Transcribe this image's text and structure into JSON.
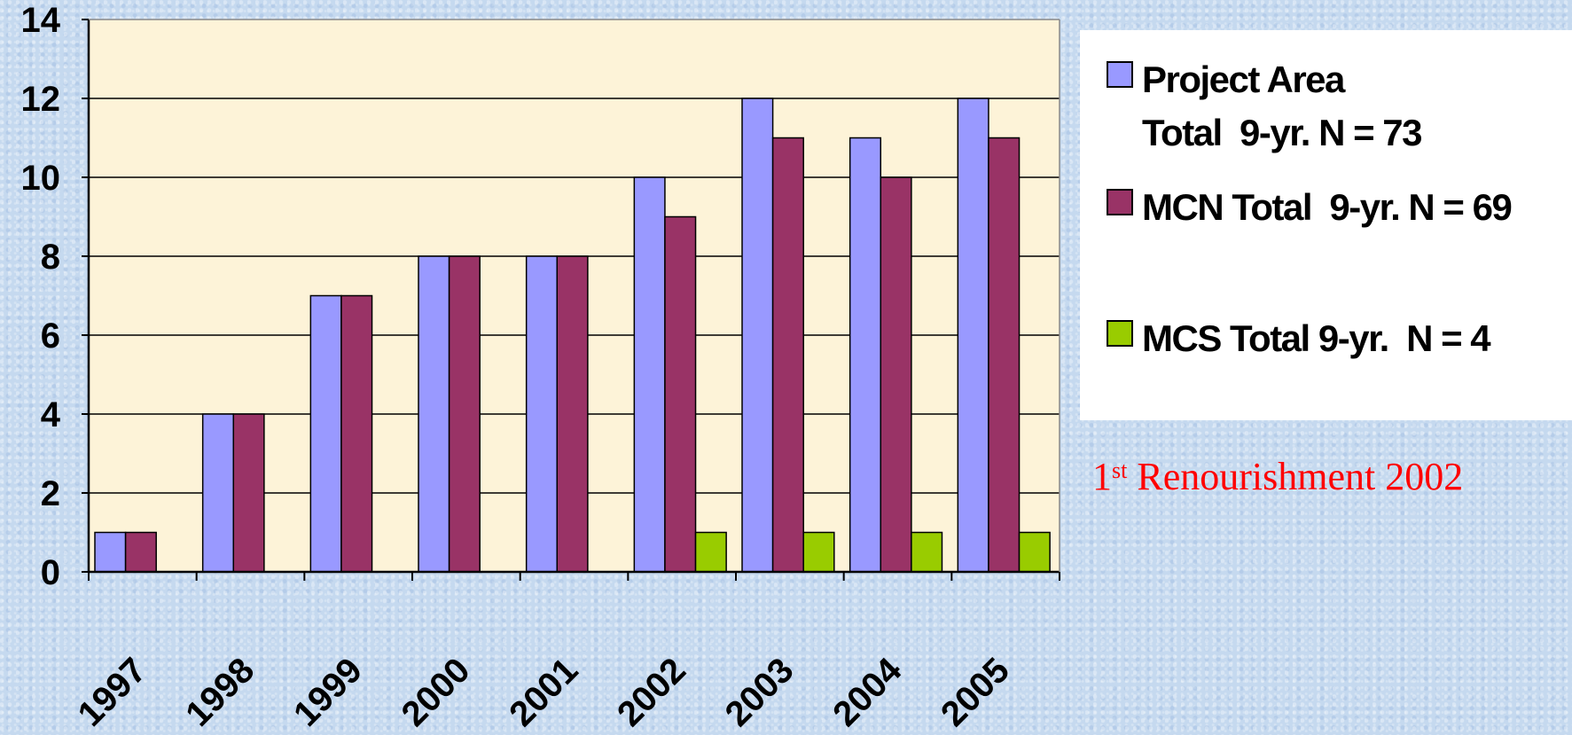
{
  "chart_data": {
    "type": "bar",
    "title": "",
    "xlabel": "",
    "ylabel": "",
    "ylim": [
      0,
      14
    ],
    "yticks": [
      "0",
      "2",
      "4",
      "6",
      "8",
      "10",
      "12",
      "14"
    ],
    "categories": [
      "1997",
      "1998",
      "1999",
      "2000",
      "2001",
      "2002",
      "2003",
      "2004",
      "2005"
    ],
    "series": [
      {
        "name": "Project Area Total  9-yr. N = 73",
        "color": "#9999ff",
        "values": [
          1,
          4,
          7,
          8,
          8,
          10,
          12,
          11,
          12
        ]
      },
      {
        "name": "MCN Total  9-yr. N = 69",
        "color": "#993366",
        "values": [
          1,
          4,
          7,
          8,
          8,
          9,
          11,
          10,
          11
        ]
      },
      {
        "name": "MCS Total 9-yr.  N = 4",
        "color": "#99cc00",
        "values": [
          0,
          0,
          0,
          0,
          0,
          1,
          1,
          1,
          1
        ]
      }
    ],
    "grid": true,
    "plot_background": "#fdf3d8",
    "legend_position": "right"
  },
  "legend": {
    "items": [
      {
        "line1": "Project Area",
        "line2": "Total  9-yr. N = 73"
      },
      {
        "line1": "MCN Total  9-yr. N = 69"
      },
      {
        "line1": "MCS Total 9-yr.  N = 4"
      }
    ]
  },
  "annotation": {
    "ordinal": "1",
    "suffix": "st",
    "text": " Renourishment 2002"
  }
}
